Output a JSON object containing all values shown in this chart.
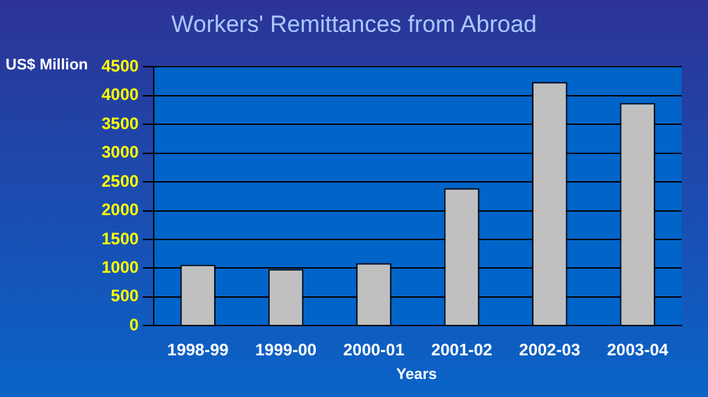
{
  "chart_data": {
    "type": "bar",
    "title": "Workers' Remittances from Abroad",
    "ylabel": "US$ Million",
    "xlabel": "Years",
    "categories": [
      "1998-99",
      "1999-00",
      "2000-01",
      "2001-02",
      "2002-03",
      "2003-04"
    ],
    "values": [
      1060,
      984,
      1087,
      2389,
      4237,
      3871
    ],
    "color": "#c0c0c0",
    "ylim": [
      0,
      4500
    ],
    "yticks": [
      0,
      500,
      1000,
      1500,
      2000,
      2500,
      3000,
      3500,
      4000,
      4500
    ],
    "grid": "y",
    "legend": false
  }
}
